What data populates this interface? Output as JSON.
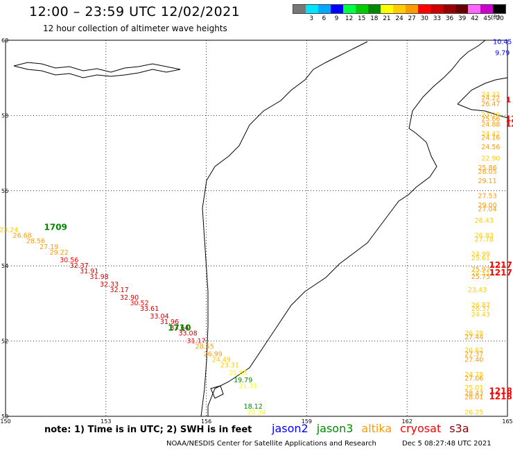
{
  "header": {
    "title": "12:00 – 23:59 UTC 12/02/2021",
    "subtitle": "12 hour collection of altimeter wave heights"
  },
  "legend": {
    "unit": "(ft)",
    "items": [
      {
        "value": "",
        "color": "#777777"
      },
      {
        "value": "3",
        "color": "#00e5ff"
      },
      {
        "value": "6",
        "color": "#00a8ff"
      },
      {
        "value": "9",
        "color": "#0000ff"
      },
      {
        "value": "12",
        "color": "#00ff44"
      },
      {
        "value": "15",
        "color": "#00cc00"
      },
      {
        "value": "18",
        "color": "#008800"
      },
      {
        "value": "21",
        "color": "#ffff00"
      },
      {
        "value": "24",
        "color": "#ffcc00"
      },
      {
        "value": "27",
        "color": "#ff9900"
      },
      {
        "value": "30",
        "color": "#ff0000"
      },
      {
        "value": "33",
        "color": "#cc0000"
      },
      {
        "value": "36",
        "color": "#990000"
      },
      {
        "value": "39",
        "color": "#660000"
      },
      {
        "value": "42",
        "color": "#ff66ff"
      },
      {
        "value": "45",
        "color": "#cc00cc"
      },
      {
        "value": "70",
        "color": "#000000"
      }
    ]
  },
  "axes": {
    "lon_ticks": [
      "150",
      "153",
      "156",
      "159",
      "162",
      "165"
    ],
    "lat_ticks": [
      "60",
      "58",
      "56",
      "54",
      "52",
      "50"
    ]
  },
  "track_labels": {
    "west_jason3_start": "1709",
    "west_jason3_end": "1710",
    "east_cryosat_1": "1217",
    "east_cryosat_2": "1217",
    "east_cryosat_3": "1218",
    "east_cryosat_4": "1218"
  },
  "observations": {
    "west_track": [
      {
        "lon": 150.1,
        "lat": 54.9,
        "v": "23.24",
        "c": "#ffcc00"
      },
      {
        "lon": 150.5,
        "lat": 54.75,
        "v": "26.68",
        "c": "#ff9900"
      },
      {
        "lon": 150.9,
        "lat": 54.6,
        "v": "28.56",
        "c": "#ff9900"
      },
      {
        "lon": 151.3,
        "lat": 54.45,
        "v": "27.19",
        "c": "#ff9900"
      },
      {
        "lon": 151.6,
        "lat": 54.3,
        "v": "29.22",
        "c": "#ff9900"
      },
      {
        "lon": 151.9,
        "lat": 54.1,
        "v": "30.56",
        "c": "#ff0000"
      },
      {
        "lon": 152.2,
        "lat": 53.95,
        "v": "32.37",
        "c": "#cc0000"
      },
      {
        "lon": 152.5,
        "lat": 53.8,
        "v": "31.91",
        "c": "#cc0000"
      },
      {
        "lon": 152.8,
        "lat": 53.65,
        "v": "31.98",
        "c": "#cc0000"
      },
      {
        "lon": 153.1,
        "lat": 53.45,
        "v": "32.33",
        "c": "#cc0000"
      },
      {
        "lon": 153.4,
        "lat": 53.3,
        "v": "32.17",
        "c": "#cc0000"
      },
      {
        "lon": 153.7,
        "lat": 53.1,
        "v": "32.90",
        "c": "#cc0000"
      },
      {
        "lon": 154.0,
        "lat": 52.95,
        "v": "30.52",
        "c": "#ff0000"
      },
      {
        "lon": 154.3,
        "lat": 52.8,
        "v": "33.61",
        "c": "#cc0000"
      },
      {
        "lon": 154.6,
        "lat": 52.6,
        "v": "33.04",
        "c": "#cc0000"
      },
      {
        "lon": 154.9,
        "lat": 52.45,
        "v": "31.96",
        "c": "#cc0000"
      },
      {
        "lon": 155.2,
        "lat": 52.3,
        "v": "33.64",
        "c": "#cc0000"
      },
      {
        "lon": 155.45,
        "lat": 52.15,
        "v": "33.08",
        "c": "#cc0000"
      },
      {
        "lon": 155.7,
        "lat": 51.95,
        "v": "31.17",
        "c": "#ff0000"
      },
      {
        "lon": 155.95,
        "lat": 51.8,
        "v": "28.55",
        "c": "#ff9900"
      },
      {
        "lon": 156.2,
        "lat": 51.6,
        "v": "26.99",
        "c": "#ff9900"
      },
      {
        "lon": 156.45,
        "lat": 51.45,
        "v": "24.49",
        "c": "#ffcc00"
      },
      {
        "lon": 156.7,
        "lat": 51.3,
        "v": "23.31",
        "c": "#ffcc00"
      },
      {
        "lon": 156.95,
        "lat": 51.1,
        "v": "21.85",
        "c": "#ffff00"
      },
      {
        "lon": 157.1,
        "lat": 50.9,
        "v": "19.79",
        "c": "#008800"
      },
      {
        "lon": 157.25,
        "lat": 50.75,
        "v": "21.31",
        "c": "#ffff00"
      },
      {
        "lon": 157.4,
        "lat": 50.2,
        "v": "18.12",
        "c": "#008800"
      },
      {
        "lon": 157.5,
        "lat": 50.05,
        "v": "20.34",
        "c": "#ffff00"
      }
    ],
    "east_track": [
      {
        "lon": 164.85,
        "lat": 59.9,
        "v": "10.45",
        "c": "#0000ff"
      },
      {
        "lon": 164.85,
        "lat": 59.6,
        "v": "9.79",
        "c": "#0000ff"
      },
      {
        "lon": 164.5,
        "lat": 58.5,
        "v": "24.32",
        "c": "#ffcc00"
      },
      {
        "lon": 164.5,
        "lat": 58.4,
        "v": "24.22",
        "c": "#ff9900"
      },
      {
        "lon": 164.5,
        "lat": 58.25,
        "v": "26.47",
        "c": "#ff9900"
      },
      {
        "lon": 164.5,
        "lat": 57.95,
        "v": "23.29",
        "c": "#ffcc00"
      },
      {
        "lon": 164.5,
        "lat": 57.85,
        "v": "25.66",
        "c": "#ff9900"
      },
      {
        "lon": 164.5,
        "lat": 57.7,
        "v": "24.88",
        "c": "#ff9900"
      },
      {
        "lon": 164.5,
        "lat": 57.45,
        "v": "24.42",
        "c": "#ffcc00"
      },
      {
        "lon": 164.5,
        "lat": 57.35,
        "v": "24.16",
        "c": "#ff9900"
      },
      {
        "lon": 164.5,
        "lat": 57.1,
        "v": "24.56",
        "c": "#ff9900"
      },
      {
        "lon": 164.5,
        "lat": 56.8,
        "v": "22.90",
        "c": "#ffcc00"
      },
      {
        "lon": 164.4,
        "lat": 56.55,
        "v": "25.86",
        "c": "#ff9900"
      },
      {
        "lon": 164.4,
        "lat": 56.45,
        "v": "28.05",
        "c": "#ff9900"
      },
      {
        "lon": 164.4,
        "lat": 56.2,
        "v": "29.11",
        "c": "#ff9900"
      },
      {
        "lon": 164.4,
        "lat": 55.8,
        "v": "27.53",
        "c": "#ff9900"
      },
      {
        "lon": 164.4,
        "lat": 55.55,
        "v": "29.00",
        "c": "#ff9900"
      },
      {
        "lon": 164.4,
        "lat": 55.45,
        "v": "27.04",
        "c": "#ff9900"
      },
      {
        "lon": 164.3,
        "lat": 55.15,
        "v": "26.43",
        "c": "#ffcc00"
      },
      {
        "lon": 164.3,
        "lat": 54.75,
        "v": "26.83",
        "c": "#ffcc00"
      },
      {
        "lon": 164.3,
        "lat": 54.65,
        "v": "27.78",
        "c": "#ffcc00"
      },
      {
        "lon": 164.2,
        "lat": 54.25,
        "v": "24.99",
        "c": "#ffcc00"
      },
      {
        "lon": 164.2,
        "lat": 54.15,
        "v": "25.61",
        "c": "#ffcc00"
      },
      {
        "lon": 164.2,
        "lat": 53.85,
        "v": "25.92",
        "c": "#ff9900"
      },
      {
        "lon": 164.2,
        "lat": 53.75,
        "v": "24.51",
        "c": "#ffcc00"
      },
      {
        "lon": 164.2,
        "lat": 53.65,
        "v": "25.75",
        "c": "#ff9900"
      },
      {
        "lon": 164.1,
        "lat": 53.3,
        "v": "23.43",
        "c": "#ffcc00"
      },
      {
        "lon": 164.2,
        "lat": 52.9,
        "v": "26.87",
        "c": "#ffcc00"
      },
      {
        "lon": 164.2,
        "lat": 52.8,
        "v": "26.37",
        "c": "#ffcc00"
      },
      {
        "lon": 164.2,
        "lat": 52.65,
        "v": "24.43",
        "c": "#ffcc00"
      },
      {
        "lon": 164.0,
        "lat": 52.15,
        "v": "26.28",
        "c": "#ffcc00"
      },
      {
        "lon": 164.0,
        "lat": 52.05,
        "v": "27.44",
        "c": "#ff9900"
      },
      {
        "lon": 164.0,
        "lat": 51.7,
        "v": "26.62",
        "c": "#ffcc00"
      },
      {
        "lon": 164.0,
        "lat": 51.6,
        "v": "27.37",
        "c": "#ff9900"
      },
      {
        "lon": 164.0,
        "lat": 51.45,
        "v": "27.40",
        "c": "#ff9900"
      },
      {
        "lon": 164.0,
        "lat": 51.05,
        "v": "24.78",
        "c": "#ffcc00"
      },
      {
        "lon": 164.0,
        "lat": 50.95,
        "v": "27.06",
        "c": "#ff9900"
      },
      {
        "lon": 164.0,
        "lat": 50.7,
        "v": "25.01",
        "c": "#ffcc00"
      },
      {
        "lon": 164.0,
        "lat": 50.55,
        "v": "28.43",
        "c": "#ff9900"
      },
      {
        "lon": 164.0,
        "lat": 50.45,
        "v": "28.01",
        "c": "#ff9900"
      },
      {
        "lon": 164.0,
        "lat": 50.05,
        "v": "26.25",
        "c": "#ffcc00"
      }
    ]
  },
  "edge_labels": [
    {
      "lon": 164.95,
      "lat": 58.35,
      "v": "1",
      "c": "#ff0000"
    },
    {
      "lon": 164.95,
      "lat": 57.85,
      "v": "12",
      "c": "#ff0000"
    },
    {
      "lon": 164.95,
      "lat": 57.7,
      "v": "12",
      "c": "#ff0000"
    }
  ],
  "footer": {
    "note": "note:  1) Time is in UTC;  2) SWH is in feet",
    "missions": [
      {
        "name": "jason2",
        "color": "#0000ff"
      },
      {
        "name": "jason3",
        "color": "#008800"
      },
      {
        "name": "altika",
        "color": "#ff9900"
      },
      {
        "name": "cryosat",
        "color": "#ff0000"
      },
      {
        "name": "s3a",
        "color": "#880000"
      }
    ],
    "credit": "NOAA/NESDIS Center for Satellite Applications and Research",
    "timestamp": "Dec  5 08:27:48 UTC 2021"
  }
}
